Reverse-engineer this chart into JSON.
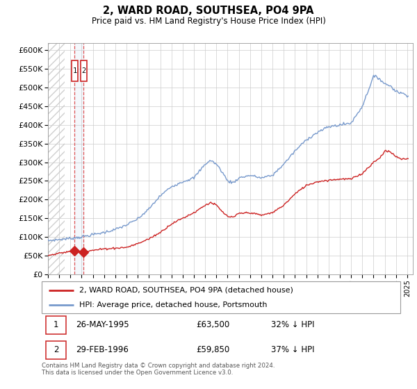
{
  "title": "2, WARD ROAD, SOUTHSEA, PO4 9PA",
  "subtitle": "Price paid vs. HM Land Registry's House Price Index (HPI)",
  "legend_line1": "2, WARD ROAD, SOUTHSEA, PO4 9PA (detached house)",
  "legend_line2": "HPI: Average price, detached house, Portsmouth",
  "sale1_label": "1",
  "sale1_date": "26-MAY-1995",
  "sale1_price": "£63,500",
  "sale1_hpi": "32% ↓ HPI",
  "sale1_year": 1995.38,
  "sale1_value": 63500,
  "sale2_label": "2",
  "sale2_date": "29-FEB-1996",
  "sale2_price": "£59,850",
  "sale2_hpi": "37% ↓ HPI",
  "sale2_year": 1996.16,
  "sale2_value": 59850,
  "footer": "Contains HM Land Registry data © Crown copyright and database right 2024.\nThis data is licensed under the Open Government Licence v3.0.",
  "hpi_color": "#7799cc",
  "price_color": "#cc2222",
  "ylim": [
    0,
    620000
  ],
  "yticks": [
    0,
    50000,
    100000,
    150000,
    200000,
    250000,
    300000,
    350000,
    400000,
    450000,
    500000,
    550000,
    600000
  ],
  "xlim_start": 1993.0,
  "xlim_end": 2025.5,
  "hatch_end": 1994.5
}
